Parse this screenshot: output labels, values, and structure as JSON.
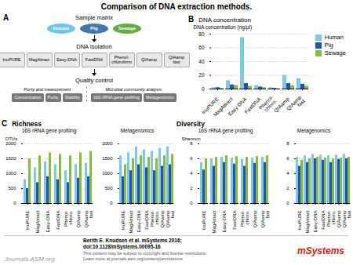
{
  "title": "Comparison of DNA extraction methods.",
  "annotations": [
    {
      "text": "Berith E. Knudsen et al. mSystems 2016;\ndoi:10.1128/mSystems.00095-16"
    },
    {
      "text": "This content may be subject to copyright and license restrictions.\nLearn more at journals.asm.org/content/permissions",
      "color": "#555555"
    },
    {
      "text": "Journals.ASM.org",
      "color": "#999999"
    },
    {
      "text": "mSystems",
      "color": "#cc2222"
    }
  ],
  "chart_data": [
    {
      "type": "diagram",
      "label": "A",
      "annotations": [
        {
          "text": "Sample matrix",
          "items": [
            "Human",
            "Pig",
            "Sewage"
          ],
          "colors": [
            "#6ec6e8",
            "#4477aa",
            "#66aa44"
          ]
        },
        {
          "text": "DNA Isolation",
          "items": [
            "InuPURE",
            "MagAttract",
            "Easy-DNA",
            "FastDNA",
            "Phenol-\nchloroform",
            "QIAamp",
            "QIAamp\nfast"
          ]
        },
        {
          "text": "Quality control",
          "groups": [
            {
              "text": "Purity and measurement",
              "items": [
                "Concentration",
                "Purity",
                "Stability"
              ]
            },
            {
              "text": "Microbial community analysis",
              "items": [
                "16S rRNA gene profiling",
                "Metagenomics"
              ]
            }
          ]
        }
      ]
    },
    {
      "type": "bar",
      "label": "B",
      "title": "DNA concentration",
      "ylabel": "DNA concentration (ng/μl)",
      "categories": [
        "InuPURE",
        "MagAttract",
        "Easy-DNA",
        "FastDNA",
        "Phenol-\nchloro.",
        "QIAamp",
        "QIAamp\nfast"
      ],
      "series": [
        {
          "name": "Human",
          "color": "#7ec8e3",
          "values": [
            2,
            12,
            75,
            5,
            2,
            20,
            15
          ]
        },
        {
          "name": "Pig",
          "color": "#2255aa",
          "values": [
            2,
            6,
            8,
            3,
            1,
            8,
            7
          ]
        },
        {
          "name": "Sewage",
          "color": "#88bb44",
          "values": [
            1,
            5,
            4,
            2,
            0.5,
            5,
            4
          ]
        }
      ],
      "ylim": [
        0,
        80
      ],
      "yticks": [
        0,
        20,
        40,
        60,
        80
      ],
      "grid": true,
      "legend": "right"
    },
    {
      "type": "bar",
      "label": "C",
      "heading": "Richness",
      "title": "16S rRNA gene profiling",
      "ylabel": "OTUs",
      "categories": [
        "InuPURE",
        "MagAttract",
        "Easy-DNA",
        "FastDNA",
        "Phenol-\nchloro.",
        "QIAamp",
        "QIAamp\nfast"
      ],
      "series": [
        {
          "name": "Human",
          "color": "#7ec8e3",
          "values": [
            800,
            1200,
            1400,
            1300,
            1100,
            1300,
            1350
          ]
        },
        {
          "name": "Pig",
          "color": "#2255aa",
          "values": [
            500,
            700,
            900,
            800,
            700,
            850,
            900
          ]
        },
        {
          "name": "Sewage",
          "color": "#88bb44",
          "values": [
            1500,
            1600,
            1700,
            1650,
            1600,
            1700,
            1750
          ]
        }
      ],
      "ylim": [
        0,
        2000
      ],
      "yticks": [
        0,
        500,
        1000,
        1500,
        2000
      ],
      "grid": true
    },
    {
      "type": "bar",
      "title": "Metagenomics",
      "categories": [
        "InuPURE",
        "MagAttract",
        "Easy-DNA",
        "FastDNA",
        "Phenol-\nchloro.",
        "QIAamp",
        "QIAamp\nfast"
      ],
      "series": [
        {
          "name": "Human",
          "color": "#7ec8e3",
          "values": [
            1600,
            1700,
            1900,
            1800,
            1750,
            1850,
            1900
          ]
        },
        {
          "name": "Pig",
          "color": "#2255aa",
          "values": [
            900,
            1100,
            1300,
            1200,
            1100,
            1250,
            1300
          ]
        },
        {
          "name": "Sewage",
          "color": "#88bb44",
          "values": [
            1300,
            1500,
            1600,
            1550,
            1500,
            1600,
            1650
          ]
        }
      ],
      "ylim": [
        0,
        2000
      ],
      "yticks": [
        0,
        500,
        1000,
        1500,
        2000
      ],
      "grid": true
    },
    {
      "type": "bar",
      "heading": "Diversity",
      "title": "16S rRNA gene profiling",
      "ylabel": "Shannon",
      "categories": [
        "InuPURE",
        "MagAttract",
        "Easy-DNA",
        "FastDNA",
        "Phenol-\nchloro.",
        "QIAamp",
        "QIAamp\nfast"
      ],
      "series": [
        {
          "name": "Human",
          "color": "#7ec8e3",
          "values": [
            5.5,
            6.0,
            6.2,
            6.1,
            5.9,
            6.1,
            6.2
          ]
        },
        {
          "name": "Pig",
          "color": "#2255aa",
          "values": [
            4.5,
            5.0,
            5.5,
            5.3,
            5.0,
            5.4,
            5.5
          ]
        },
        {
          "name": "Sewage",
          "color": "#88bb44",
          "values": [
            6.0,
            6.2,
            6.4,
            6.3,
            6.2,
            6.3,
            6.4
          ]
        }
      ],
      "ylim": [
        0,
        8
      ],
      "yticks": [
        0,
        2,
        4,
        6,
        8
      ],
      "grid": true
    },
    {
      "type": "bar",
      "title": "Metagenomics",
      "categories": [
        "InuPURE",
        "MagAttract",
        "Easy-DNA",
        "FastDNA",
        "Phenol-\nchloro.",
        "QIAamp",
        "QIAamp\nfast"
      ],
      "series": [
        {
          "name": "Human",
          "color": "#7ec8e3",
          "values": [
            6.2,
            6.4,
            6.6,
            6.5,
            6.4,
            6.5,
            6.6
          ]
        },
        {
          "name": "Pig",
          "color": "#2255aa",
          "values": [
            5.0,
            5.5,
            6.0,
            5.8,
            5.5,
            5.9,
            6.0
          ]
        },
        {
          "name": "Sewage",
          "color": "#88bb44",
          "values": [
            5.8,
            6.0,
            6.2,
            6.1,
            6.0,
            6.1,
            6.2
          ]
        }
      ],
      "ylim": [
        0,
        8
      ],
      "yticks": [
        0,
        2,
        4,
        6,
        8
      ],
      "grid": true
    }
  ]
}
